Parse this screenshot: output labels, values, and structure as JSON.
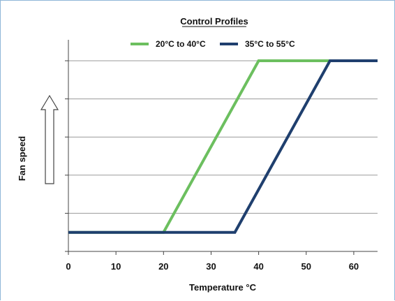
{
  "chart_data": {
    "type": "line",
    "title": "Control Profiles",
    "xlabel": "Temperature °C",
    "ylabel": "Fan speed",
    "xlim": [
      0,
      65
    ],
    "ylim": [
      0,
      5
    ],
    "x_ticks": [
      "0",
      "10",
      "20",
      "30",
      "40",
      "50",
      "60"
    ],
    "y_ticks_labeled": false,
    "grid": "horizontal",
    "legend_position": "top",
    "series": [
      {
        "name": "20°C to 40°C",
        "color": "#6cbf5f",
        "x": [
          0,
          20,
          40,
          65
        ],
        "y": [
          0.5,
          0.5,
          5,
          5
        ]
      },
      {
        "name": "35°C to 55°C",
        "color": "#1f3f6e",
        "x": [
          0,
          35,
          55,
          65
        ],
        "y": [
          0.5,
          0.5,
          5,
          5
        ]
      }
    ]
  }
}
